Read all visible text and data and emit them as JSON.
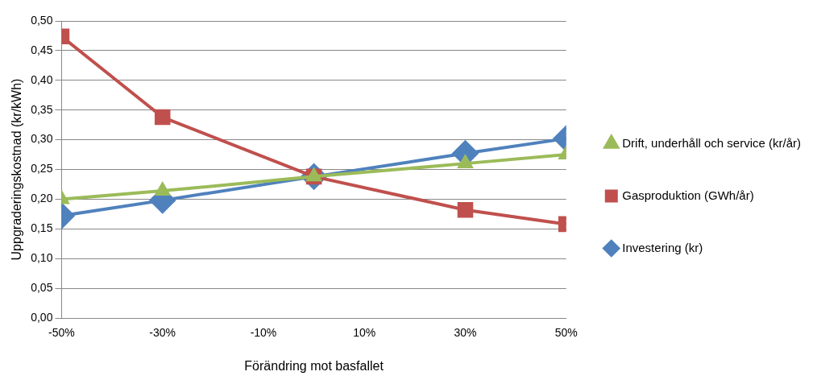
{
  "chart_data": {
    "type": "line",
    "xlabel": "Förändring mot basfallet",
    "ylabel": "Uppgraderingskostnad (kr/kWh)",
    "x": [
      -50,
      -30,
      0,
      30,
      50
    ],
    "series": [
      {
        "name": "Investering (kr)",
        "color": "#4f81bd",
        "marker": "diamond",
        "values": [
          0.172,
          0.198,
          0.238,
          0.277,
          0.302
        ]
      },
      {
        "name": "Gasproduktion (GWh/år)",
        "color": "#c0504d",
        "marker": "square",
        "values": [
          0.474,
          0.338,
          0.238,
          0.182,
          0.158
        ]
      },
      {
        "name": "Drift, underhåll och service (kr/år)",
        "color": "#9bbb59",
        "marker": "triangle",
        "values": [
          0.2,
          0.214,
          0.238,
          0.26,
          0.275
        ]
      }
    ],
    "xlim": [
      -50,
      50
    ],
    "xticks": [
      {
        "value": -50,
        "label": "-50%"
      },
      {
        "value": -30,
        "label": "-30%"
      },
      {
        "value": -10,
        "label": "-10%"
      },
      {
        "value": 10,
        "label": "10%"
      },
      {
        "value": 30,
        "label": "30%"
      },
      {
        "value": 50,
        "label": "50%"
      }
    ],
    "ylim": [
      0,
      0.5
    ],
    "yticks": [
      {
        "value": 0,
        "label": "0,00"
      },
      {
        "value": 0.05,
        "label": "0,05"
      },
      {
        "value": 0.1,
        "label": "0,10"
      },
      {
        "value": 0.15,
        "label": "0,15"
      },
      {
        "value": 0.2,
        "label": "0,20"
      },
      {
        "value": 0.25,
        "label": "0,25"
      },
      {
        "value": 0.3,
        "label": "0,30"
      },
      {
        "value": 0.35,
        "label": "0,35"
      },
      {
        "value": 0.4,
        "label": "0,40"
      },
      {
        "value": 0.45,
        "label": "0,45"
      },
      {
        "value": 0.5,
        "label": "0,50"
      }
    ],
    "grid": "y",
    "legend": "right",
    "line_style": "solid"
  }
}
